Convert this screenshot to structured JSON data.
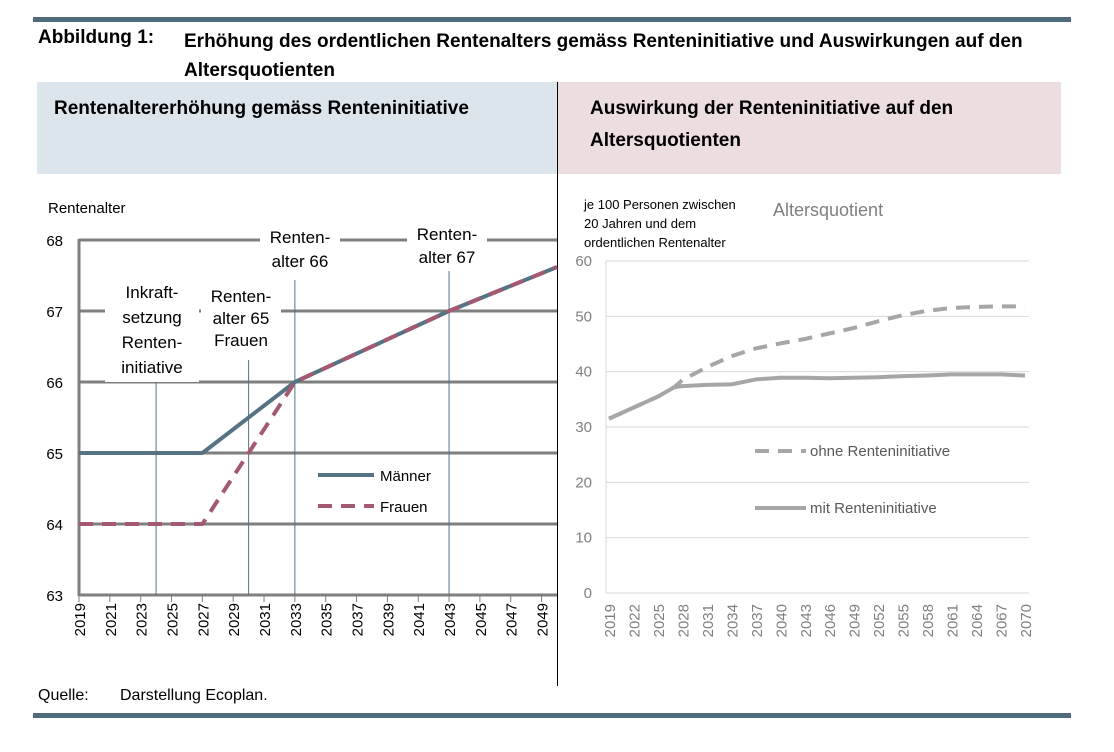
{
  "figure": {
    "label": "Abbildung 1:",
    "title": "Erhöhung des ordentlichen Rentenalters gemäss Renteninitiative und Auswirkungen auf den Altersquotienten"
  },
  "panels": {
    "left_title": "Rentenaltererhöhung gemäss Renteninitiative",
    "right_title": "Auswirkung der Renteninitiative auf den Altersquotienten"
  },
  "source": {
    "label": "Quelle:",
    "text": "Darstellung Ecoplan."
  },
  "colors": {
    "rule": "#4f6b7c",
    "maenner": "#557384",
    "frauen": "#a55872",
    "grid_left": "#7f7f7f",
    "alters_lines": "#a6a6a6"
  },
  "chart_data": [
    {
      "type": "line",
      "title": "",
      "ylabel": "Rentenalter",
      "xlim": [
        2019,
        2050
      ],
      "ylim": [
        63,
        68
      ],
      "yticks": [
        63,
        64,
        65,
        66,
        67,
        68
      ],
      "xticks": [
        "2019",
        "2021",
        "2023",
        "2025",
        "2027",
        "2029",
        "2031",
        "2033",
        "2035",
        "2037",
        "2039",
        "2041",
        "2043",
        "2045",
        "2047",
        "2049"
      ],
      "grid": true,
      "legend": "center-right",
      "series": [
        {
          "name": "Männer",
          "style": "solid",
          "x": [
            2019,
            2027,
            2033,
            2043,
            2050
          ],
          "y": [
            65,
            65,
            66,
            67,
            67.62
          ]
        },
        {
          "name": "Frauen",
          "style": "dashed",
          "x": [
            2019,
            2027,
            2030,
            2033,
            2043,
            2050
          ],
          "y": [
            64,
            64,
            65,
            66,
            67,
            67.62
          ]
        }
      ],
      "annotations": [
        {
          "text": [
            "Inkraft-",
            "setzung",
            "Renten-",
            "initiative"
          ],
          "x": 2024
        },
        {
          "text": [
            "Renten-",
            "alter 65",
            "Frauen"
          ],
          "x": 2030
        },
        {
          "text": [
            "Renten-",
            "alter 66"
          ],
          "x": 2033
        },
        {
          "text": [
            "Renten-",
            "alter 67"
          ],
          "x": 2043
        }
      ]
    },
    {
      "type": "line",
      "title": "Altersquotient",
      "ylabel": [
        "je 100 Personen zwischen",
        "20 Jahren und dem",
        "ordentlichen Rentenalter"
      ],
      "ylim": [
        0,
        60
      ],
      "yticks": [
        0,
        10,
        20,
        30,
        40,
        50,
        60
      ],
      "xticks": [
        "2019",
        "2022",
        "2025",
        "2028",
        "2031",
        "2034",
        "2037",
        "2040",
        "2043",
        "2046",
        "2049",
        "2052",
        "2055",
        "2058",
        "2061",
        "2064",
        "2067",
        "2070"
      ],
      "grid": true,
      "legend": "center",
      "series": [
        {
          "name": "ohne Renteninitiative",
          "style": "dashed",
          "x": [
            2019,
            2022,
            2025,
            2027,
            2028,
            2031,
            2034,
            2037,
            2040,
            2043,
            2046,
            2049,
            2052,
            2055,
            2058,
            2061,
            2064,
            2067,
            2070
          ],
          "y": [
            31.5,
            33.5,
            35.5,
            37.2,
            38.5,
            40.8,
            42.8,
            44.2,
            45.1,
            45.9,
            46.9,
            47.9,
            49.1,
            50.2,
            51.0,
            51.5,
            51.7,
            51.8,
            51.8
          ]
        },
        {
          "name": "mit Renteninitiative",
          "style": "solid",
          "x": [
            2019,
            2022,
            2025,
            2027,
            2028,
            2031,
            2034,
            2037,
            2040,
            2043,
            2046,
            2049,
            2052,
            2055,
            2058,
            2061,
            2064,
            2067,
            2070
          ],
          "y": [
            31.5,
            33.5,
            35.5,
            37.2,
            37.4,
            37.6,
            37.7,
            38.6,
            38.9,
            38.9,
            38.8,
            38.9,
            39.0,
            39.2,
            39.3,
            39.5,
            39.5,
            39.5,
            39.3
          ]
        }
      ]
    }
  ]
}
